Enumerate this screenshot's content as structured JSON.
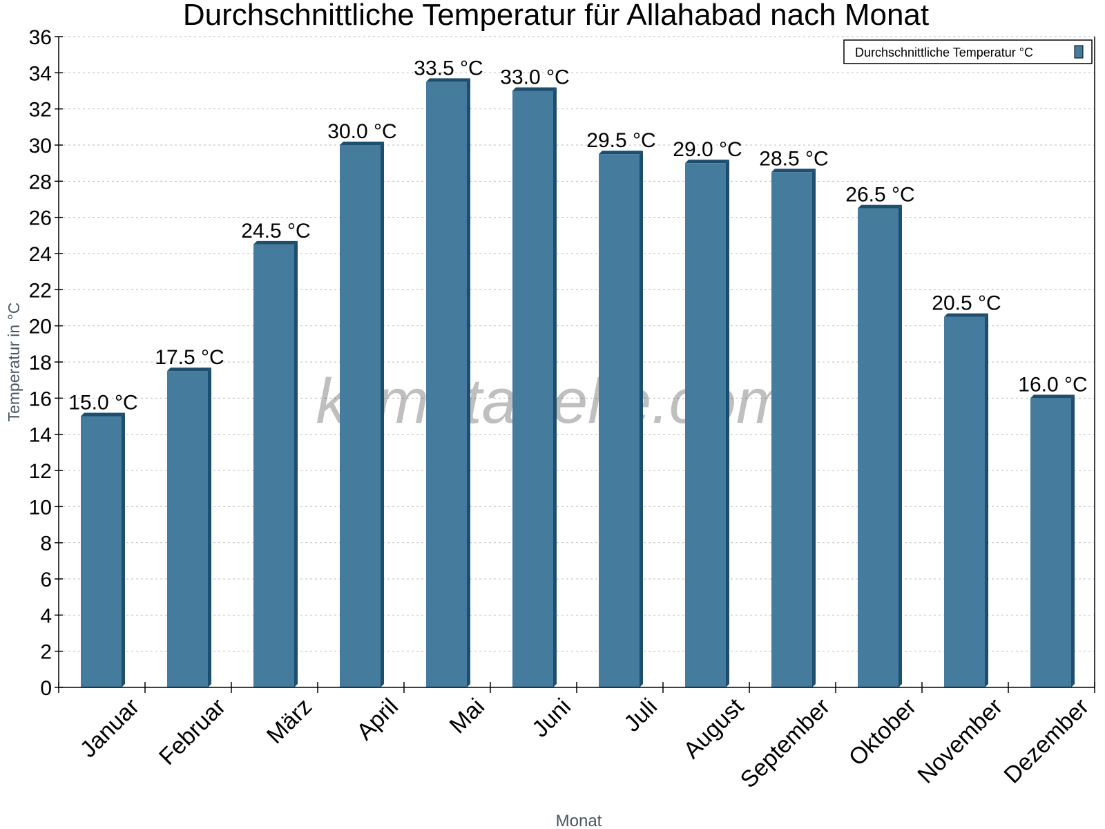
{
  "chart_data": {
    "type": "bar",
    "title": "Durchschnittliche Temperatur für Allahabad nach Monat",
    "xlabel": "Monat",
    "ylabel": "Temperatur in °C",
    "categories": [
      "Januar",
      "Februar",
      "März",
      "April",
      "Mai",
      "Juni",
      "Juli",
      "August",
      "September",
      "Oktober",
      "November",
      "Dezember"
    ],
    "series": [
      {
        "name": "Durchschnittliche Temperatur °C",
        "values": [
          15.0,
          17.5,
          24.5,
          30.0,
          33.5,
          33.0,
          29.5,
          29.0,
          28.5,
          26.5,
          20.5,
          16.0
        ],
        "color": "#457b9d",
        "side_color": "#1d4e6e"
      }
    ],
    "value_label_suffix": " °C",
    "ylim": [
      0,
      36
    ],
    "yticks": [
      0,
      2,
      4,
      6,
      8,
      10,
      12,
      14,
      16,
      18,
      20,
      22,
      24,
      26,
      28,
      30,
      32,
      34,
      36
    ],
    "grid": true,
    "legend": "top-right"
  },
  "watermark": "klimatabelle.com"
}
